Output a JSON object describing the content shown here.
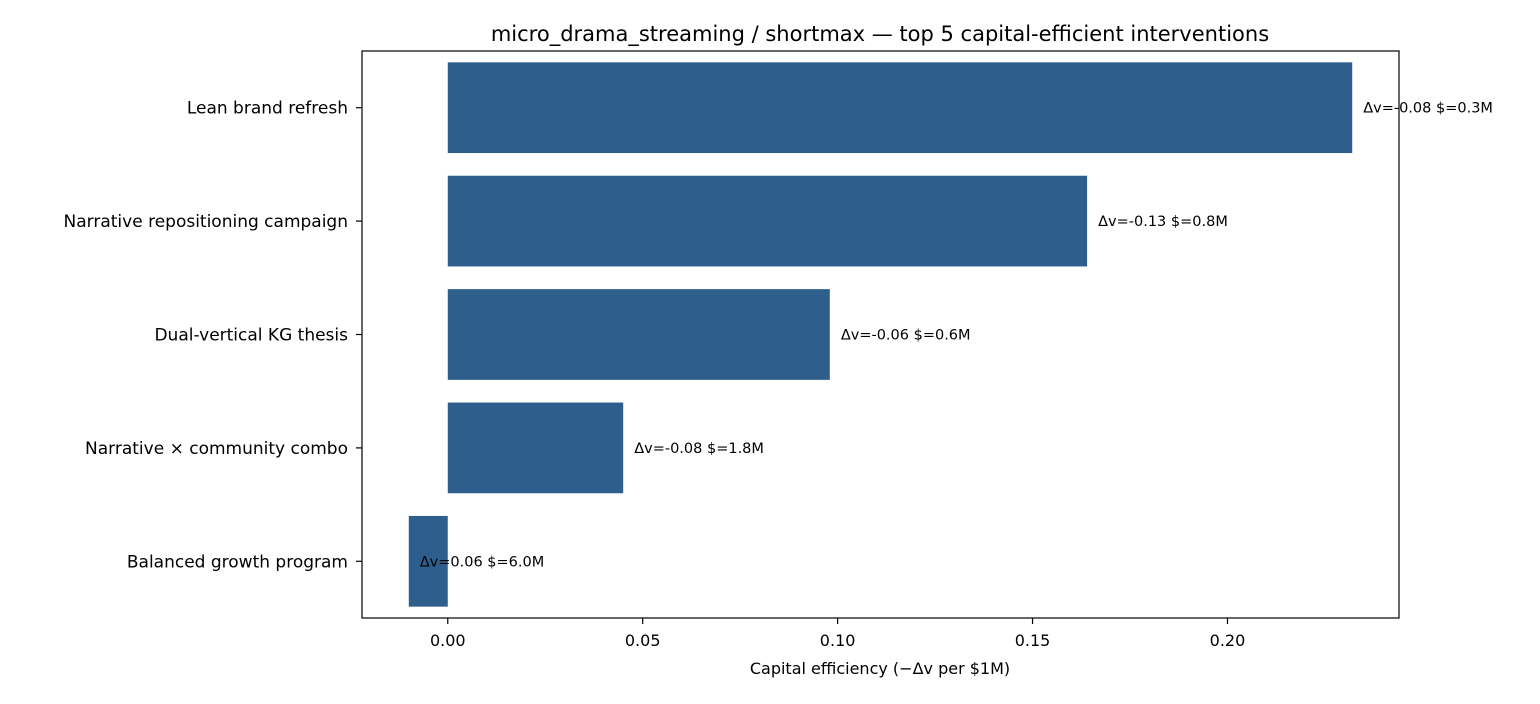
{
  "chart_data": {
    "type": "bar",
    "orientation": "horizontal",
    "title": "micro_drama_streaming / shortmax — top 5 capital-efficient interventions",
    "xlabel": "Capital efficiency  (−Δv per $1M)",
    "ylabel": "",
    "xlim": [
      -0.022,
      0.244
    ],
    "xticks": [
      0.0,
      0.05,
      0.1,
      0.15,
      0.2
    ],
    "xtick_labels": [
      "0.00",
      "0.05",
      "0.10",
      "0.15",
      "0.20"
    ],
    "categories": [
      "Lean brand refresh",
      "Narrative repositioning campaign",
      "Dual-vertical KG thesis",
      "Narrative × community combo",
      "Balanced growth program"
    ],
    "values": [
      0.232,
      0.164,
      0.098,
      0.045,
      -0.01
    ],
    "data_labels": [
      "Δv=-0.08  $=0.3M",
      "Δv=-0.13  $=0.8M",
      "Δv=-0.06  $=0.6M",
      "Δv=-0.08  $=1.8M",
      "Δv=0.06  $=6.0M"
    ],
    "bar_color": "#2e5f8c",
    "grid": false,
    "legend": "none"
  }
}
